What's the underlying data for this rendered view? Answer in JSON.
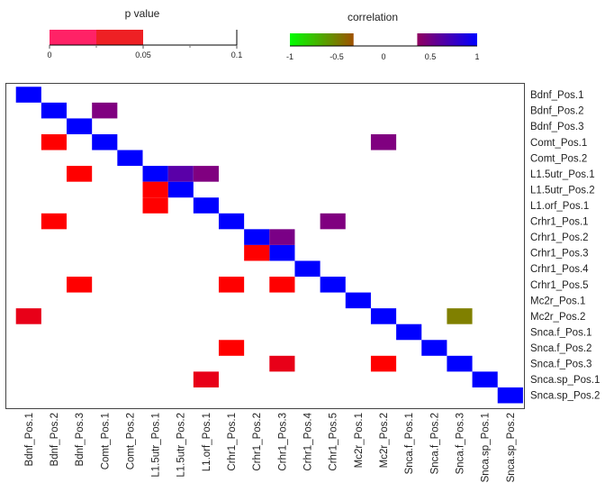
{
  "chart_data": {
    "type": "heatmap",
    "labels": [
      "Bdnf_Pos.1",
      "Bdnf_Pos.2",
      "Bdnf_Pos.3",
      "Comt_Pos.1",
      "Comt_Pos.2",
      "L1.5utr_Pos.1",
      "L1.5utr_Pos.2",
      "L1.orf_Pos.1",
      "Crhr1_Pos.1",
      "Crhr1_Pos.2",
      "Crhr1_Pos.3",
      "Crhr1_Pos.4",
      "Crhr1_Pos.5",
      "Mc2r_Pos.1",
      "Mc2r_Pos.2",
      "Snca.f_Pos.1",
      "Snca.f_Pos.2",
      "Snca.f_Pos.3",
      "Snca.sp_Pos.1",
      "Snca.sp_Pos.2"
    ],
    "upper_triangle": "correlation",
    "lower_triangle": "p value",
    "cells": [
      {
        "row": 0,
        "col": 0,
        "type": "correlation",
        "value": 1,
        "color": "#0000ff"
      },
      {
        "row": 1,
        "col": 1,
        "type": "correlation",
        "value": 1,
        "color": "#0000ff"
      },
      {
        "row": 2,
        "col": 2,
        "type": "correlation",
        "value": 1,
        "color": "#0000ff"
      },
      {
        "row": 3,
        "col": 3,
        "type": "correlation",
        "value": 1,
        "color": "#0000ff"
      },
      {
        "row": 4,
        "col": 4,
        "type": "correlation",
        "value": 1,
        "color": "#0000ff"
      },
      {
        "row": 5,
        "col": 5,
        "type": "correlation",
        "value": 1,
        "color": "#0000ff"
      },
      {
        "row": 6,
        "col": 6,
        "type": "correlation",
        "value": 1,
        "color": "#0000ff"
      },
      {
        "row": 7,
        "col": 7,
        "type": "correlation",
        "value": 1,
        "color": "#0000ff"
      },
      {
        "row": 8,
        "col": 8,
        "type": "correlation",
        "value": 1,
        "color": "#0000ff"
      },
      {
        "row": 9,
        "col": 9,
        "type": "correlation",
        "value": 1,
        "color": "#0000ff"
      },
      {
        "row": 10,
        "col": 10,
        "type": "correlation",
        "value": 1,
        "color": "#0000ff"
      },
      {
        "row": 11,
        "col": 11,
        "type": "correlation",
        "value": 1,
        "color": "#0000ff"
      },
      {
        "row": 12,
        "col": 12,
        "type": "correlation",
        "value": 1,
        "color": "#0000ff"
      },
      {
        "row": 13,
        "col": 13,
        "type": "correlation",
        "value": 1,
        "color": "#0000ff"
      },
      {
        "row": 14,
        "col": 14,
        "type": "correlation",
        "value": 1,
        "color": "#0000ff"
      },
      {
        "row": 15,
        "col": 15,
        "type": "correlation",
        "value": 1,
        "color": "#0000ff"
      },
      {
        "row": 16,
        "col": 16,
        "type": "correlation",
        "value": 1,
        "color": "#0000ff"
      },
      {
        "row": 17,
        "col": 17,
        "type": "correlation",
        "value": 1,
        "color": "#0000ff"
      },
      {
        "row": 18,
        "col": 18,
        "type": "correlation",
        "value": 1,
        "color": "#0000ff"
      },
      {
        "row": 19,
        "col": 19,
        "type": "correlation",
        "value": 1,
        "color": "#0000ff"
      },
      {
        "row": 1,
        "col": 3,
        "type": "correlation",
        "value": 0.4,
        "color": "#800080"
      },
      {
        "row": 3,
        "col": 14,
        "type": "correlation",
        "value": 0.4,
        "color": "#800080"
      },
      {
        "row": 5,
        "col": 6,
        "type": "correlation",
        "value": 0.6,
        "color": "#5a00a8"
      },
      {
        "row": 5,
        "col": 7,
        "type": "correlation",
        "value": 0.4,
        "color": "#800080"
      },
      {
        "row": 8,
        "col": 12,
        "type": "correlation",
        "value": 0.4,
        "color": "#800080"
      },
      {
        "row": 9,
        "col": 10,
        "type": "correlation",
        "value": 0.45,
        "color": "#7a0086"
      },
      {
        "row": 14,
        "col": 17,
        "type": "correlation",
        "value": -0.35,
        "color": "#808000"
      },
      {
        "row": 3,
        "col": 1,
        "type": "p",
        "value": 0.03,
        "color": "#ff0000"
      },
      {
        "row": 5,
        "col": 2,
        "type": "p",
        "value": 0.03,
        "color": "#ff0000"
      },
      {
        "row": 6,
        "col": 5,
        "type": "p",
        "value": 0.03,
        "color": "#ff0000"
      },
      {
        "row": 7,
        "col": 5,
        "type": "p",
        "value": 0.03,
        "color": "#ff0000"
      },
      {
        "row": 8,
        "col": 1,
        "type": "p",
        "value": 0.03,
        "color": "#ff0000"
      },
      {
        "row": 10,
        "col": 9,
        "type": "p",
        "value": 0.03,
        "color": "#ff0000"
      },
      {
        "row": 12,
        "col": 2,
        "type": "p",
        "value": 0.03,
        "color": "#ff0000"
      },
      {
        "row": 12,
        "col": 8,
        "type": "p",
        "value": 0.03,
        "color": "#ff0000"
      },
      {
        "row": 12,
        "col": 10,
        "type": "p",
        "value": 0.03,
        "color": "#ff0000"
      },
      {
        "row": 14,
        "col": 0,
        "type": "p",
        "value": 0.04,
        "color": "#e80018"
      },
      {
        "row": 16,
        "col": 8,
        "type": "p",
        "value": 0.03,
        "color": "#ff0000"
      },
      {
        "row": 17,
        "col": 10,
        "type": "p",
        "value": 0.04,
        "color": "#e80018"
      },
      {
        "row": 17,
        "col": 14,
        "type": "p",
        "value": 0.03,
        "color": "#ff0000"
      },
      {
        "row": 18,
        "col": 7,
        "type": "p",
        "value": 0.04,
        "color": "#e80018"
      }
    ],
    "legend_p": {
      "title": "p value",
      "range": [
        0,
        0.1
      ],
      "ticks": [
        "0",
        "0.05",
        "0.1"
      ],
      "tick_values": [
        0,
        0.05,
        0.1
      ],
      "minor_ticks": [
        0.025,
        0.075
      ],
      "segments": [
        {
          "from": 0,
          "to": 0.025,
          "color": "#ff2266"
        },
        {
          "from": 0.025,
          "to": 0.05,
          "color": "#ee2024"
        }
      ]
    },
    "legend_corr": {
      "title": "correlation",
      "range": [
        -1,
        1
      ],
      "ticks": [
        "-1",
        "-0.5",
        "0",
        "0.5",
        "1"
      ],
      "tick_values": [
        -1,
        -0.5,
        0,
        0.5,
        1
      ],
      "segments": [
        {
          "from": -1,
          "to": -0.32,
          "color_start": "#00ff00",
          "color_end": "#a05000"
        },
        {
          "from": 0.36,
          "to": 1,
          "color_start": "#900060",
          "color_end": "#0000ff"
        }
      ]
    }
  }
}
